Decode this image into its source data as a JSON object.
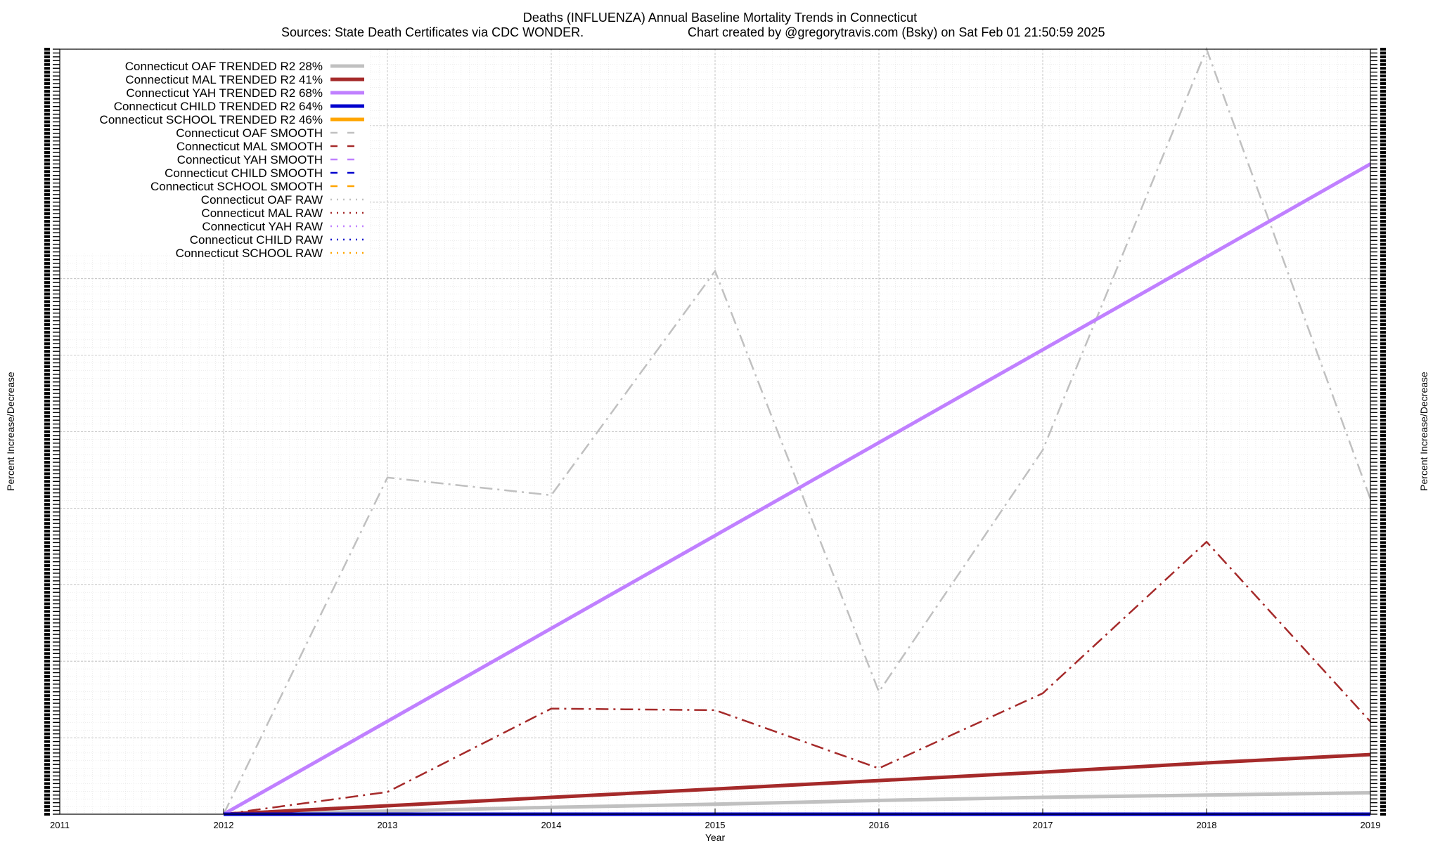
{
  "chart_data": {
    "type": "line",
    "title": "Deaths (INFLUENZA)  Annual Baseline Mortality Trends in Connecticut",
    "subtitle_left": "Sources: State Death Certificates via CDC WONDER.",
    "subtitle_right": "Chart created by @gregorytravis.com (Bsky) on Sat Feb 01 21:50:59 2025",
    "xlabel": "Year",
    "ylabel": "Percent Increase/Decrease",
    "y2label": "Percent Increase/Decrease",
    "x_ticks": [
      "2011",
      "2012",
      "2013",
      "2014",
      "2015",
      "2016",
      "2017",
      "2018",
      "2019"
    ],
    "xlim": [
      2011,
      2019
    ],
    "ylim": [
      0,
      100
    ],
    "grid": true,
    "legend_position": "top-left",
    "series": [
      {
        "name": "Connecticut OAF TRENDED R2  28%",
        "style": "trended",
        "color": "#c0c0c0",
        "x": [
          2012,
          2013,
          2014,
          2015,
          2016,
          2017,
          2018,
          2019
        ],
        "values": [
          0.0,
          0.4,
          0.9,
          1.3,
          1.8,
          2.2,
          2.5,
          2.8
        ]
      },
      {
        "name": "Connecticut MAL TRENDED R2  41%",
        "style": "trended",
        "color": "#a52a2a",
        "x": [
          2012,
          2013,
          2014,
          2015,
          2016,
          2017,
          2018,
          2019
        ],
        "values": [
          0.0,
          1.1,
          2.2,
          3.3,
          4.4,
          5.5,
          6.7,
          7.8
        ]
      },
      {
        "name": "Connecticut YAH TRENDED R2  68%",
        "style": "trended",
        "color": "#c080ff",
        "x": [
          2012,
          2019
        ],
        "values": [
          0.0,
          85.0
        ]
      },
      {
        "name": "Connecticut CHILD TRENDED R2  64%",
        "style": "trended",
        "color": "#0000cd",
        "x": [
          2012,
          2019
        ],
        "values": [
          0.0,
          0.0
        ]
      },
      {
        "name": "Connecticut SCHOOL TRENDED R2  46%",
        "style": "trended",
        "color": "#ffa500",
        "x": [],
        "values": []
      },
      {
        "name": "Connecticut OAF SMOOTH",
        "style": "smooth",
        "color": "#c0c0c0",
        "x": [
          2012,
          2013,
          2014,
          2015,
          2016,
          2017,
          2018,
          2019
        ],
        "values": [
          0.0,
          44.0,
          41.7,
          71.0,
          16.0,
          47.6,
          100.0,
          41.2
        ]
      },
      {
        "name": "Connecticut MAL SMOOTH",
        "style": "smooth",
        "color": "#a52a2a",
        "x": [
          2012,
          2013,
          2014,
          2015,
          2016,
          2017,
          2018,
          2019
        ],
        "values": [
          0.0,
          2.9,
          13.8,
          13.6,
          6.0,
          15.8,
          35.6,
          12.1
        ]
      },
      {
        "name": "Connecticut YAH SMOOTH",
        "style": "smooth",
        "color": "#c080ff",
        "x": [],
        "values": []
      },
      {
        "name": "Connecticut CHILD SMOOTH",
        "style": "smooth",
        "color": "#0000cd",
        "x": [],
        "values": []
      },
      {
        "name": "Connecticut SCHOOL SMOOTH",
        "style": "smooth",
        "color": "#ffa500",
        "x": [],
        "values": []
      },
      {
        "name": "Connecticut OAF RAW",
        "style": "raw",
        "color": "#c0c0c0",
        "x": [],
        "values": []
      },
      {
        "name": "Connecticut MAL RAW",
        "style": "raw",
        "color": "#a52a2a",
        "x": [],
        "values": []
      },
      {
        "name": "Connecticut YAH RAW",
        "style": "raw",
        "color": "#c080ff",
        "x": [],
        "values": []
      },
      {
        "name": "Connecticut CHILD RAW",
        "style": "raw",
        "color": "#0000cd",
        "x": [],
        "values": []
      },
      {
        "name": "Connecticut SCHOOL RAW",
        "style": "raw",
        "color": "#ffa500",
        "x": [],
        "values": []
      }
    ]
  }
}
